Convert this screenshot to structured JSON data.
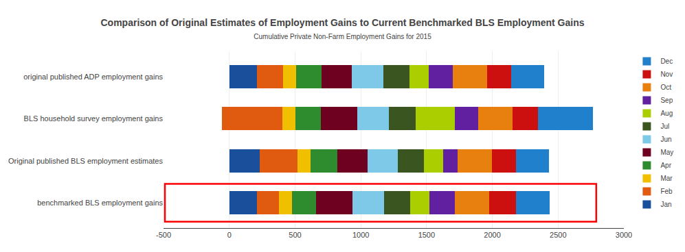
{
  "chart_data": {
    "type": "bar",
    "orientation": "horizontal",
    "stacked": true,
    "title": "Comparison of Original Estimates of Employment Gains to Current Benchmarked BLS Employment Gains",
    "subtitle": "Cumulative Private Non-Farm Employment Gains for 2015",
    "categories": [
      "benchmarked BLS employment gains",
      "Original published BLS employment estimates",
      "BLS household survey employment gains",
      "original published ADP employment gains"
    ],
    "series": [
      {
        "name": "Jan",
        "color": "#1a4f9c",
        "values": [
          210,
          230,
          -55,
          210
        ]
      },
      {
        "name": "Feb",
        "color": "#e05a10",
        "values": [
          165,
          290,
          460,
          200
        ]
      },
      {
        "name": "Mar",
        "color": "#f0c000",
        "values": [
          100,
          100,
          100,
          100
        ]
      },
      {
        "name": "Apr",
        "color": "#2e8b2e",
        "values": [
          185,
          200,
          190,
          190
        ]
      },
      {
        "name": "May",
        "color": "#6e0020",
        "values": [
          275,
          230,
          280,
          230
        ]
      },
      {
        "name": "Jun",
        "color": "#7ec8e8",
        "values": [
          240,
          230,
          240,
          240
        ]
      },
      {
        "name": "Jul",
        "color": "#3a5520",
        "values": [
          200,
          200,
          200,
          200
        ]
      },
      {
        "name": "Aug",
        "color": "#aace00",
        "values": [
          145,
          145,
          300,
          145
        ]
      },
      {
        "name": "Sep",
        "color": "#6020a0",
        "values": [
          195,
          110,
          180,
          185
        ]
      },
      {
        "name": "Oct",
        "color": "#e88010",
        "values": [
          260,
          260,
          260,
          260
        ]
      },
      {
        "name": "Nov",
        "color": "#cc1010",
        "values": [
          205,
          185,
          190,
          185
        ]
      },
      {
        "name": "Dec",
        "color": "#2080cc",
        "values": [
          255,
          250,
          420,
          250
        ]
      }
    ],
    "xlim": [
      -500,
      3000
    ],
    "xticks": [
      -500,
      0,
      500,
      1000,
      1500,
      2000,
      2500,
      3000
    ],
    "grid": true,
    "legend": "right"
  }
}
